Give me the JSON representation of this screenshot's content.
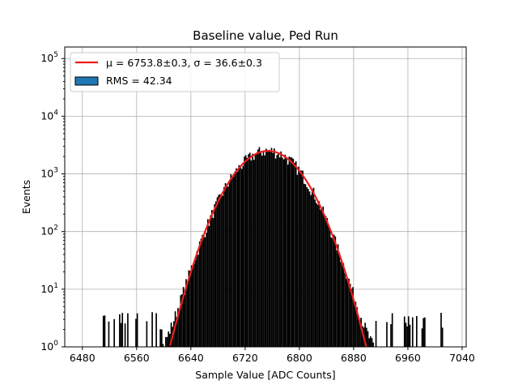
{
  "chart_data": {
    "type": "bar",
    "title": "Baseline value, Ped Run",
    "xlabel": "Sample Value [ADC Counts]",
    "ylabel": "Events",
    "xlim": [
      6454,
      7046
    ],
    "ylim_log10": [
      0,
      5.2
    ],
    "y_scale": "log",
    "grid": true,
    "x_ticks": [
      "6480",
      "6560",
      "6640",
      "6720",
      "6800",
      "6880",
      "6960",
      "7040"
    ],
    "x_tick_values": [
      6480,
      6560,
      6640,
      6720,
      6800,
      6880,
      6960,
      7040
    ],
    "y_tick_exponents": [
      0,
      1,
      2,
      3,
      4,
      5
    ],
    "y_tick_base": "10",
    "legend": {
      "position": "top-left",
      "fit_label": "μ = 6753.8±0.3, σ = 36.6±0.3",
      "hist_label": "RMS = 42.34"
    },
    "histogram": {
      "bin_width": 2,
      "min": 6508,
      "max": 7016,
      "mean": 6753.8,
      "sigma": 36.6,
      "peak_counts": 2500,
      "tail_amplitude": 35,
      "tail_scale": 40
    },
    "fit": {
      "mu": 6753.8,
      "sigma": 36.6,
      "amplitude": 2500
    },
    "colors": {
      "histogram": "#000000",
      "fit": "#ee1c1c",
      "legend_patch": "#1f77b4",
      "grid": "#b0b0b0"
    }
  }
}
